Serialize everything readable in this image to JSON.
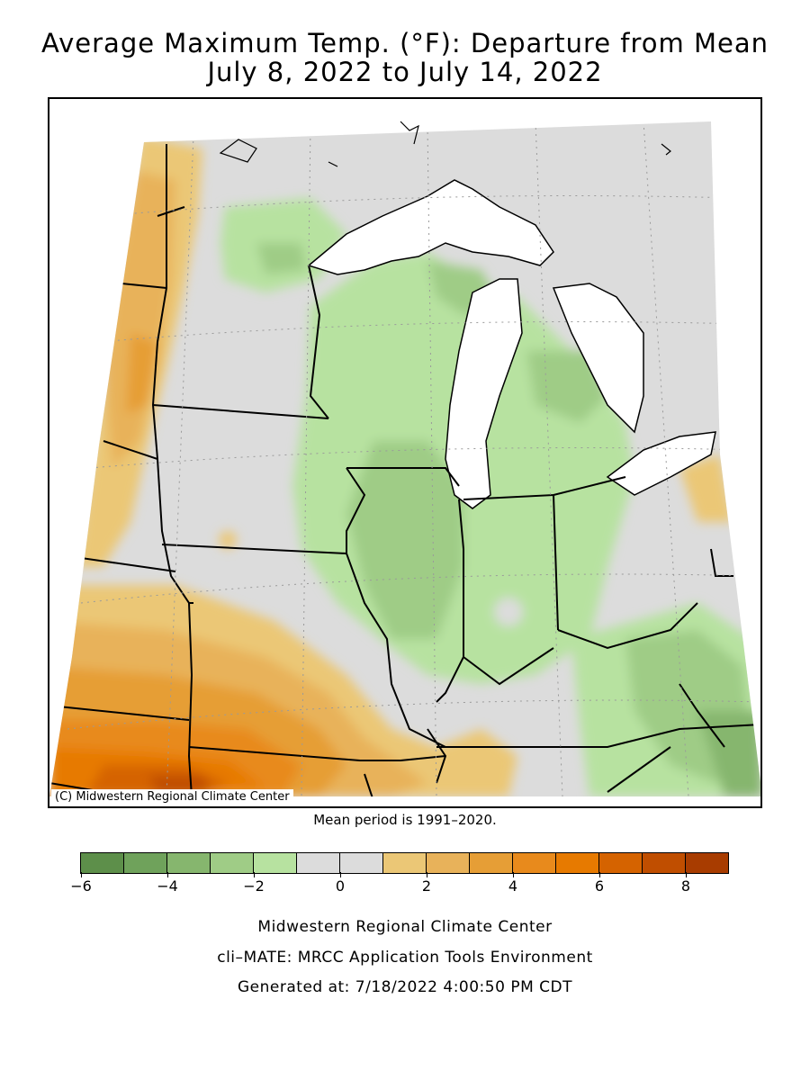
{
  "title": {
    "line1": "Average Maximum Temp. (°F): Departure from Mean",
    "line2": "July 8, 2022 to July 14, 2022"
  },
  "map": {
    "copyright": "(C) Midwestern Regional Climate Center",
    "mean_period": "Mean period is 1991–2020."
  },
  "legend": {
    "colors": [
      "#5d8f4a",
      "#6fa25b",
      "#86b66e",
      "#9fcc86",
      "#b7e2a0",
      "#dcdcdc",
      "#dcdcdc",
      "#ebc776",
      "#e8b25a",
      "#e69e36",
      "#e88a1c",
      "#e77a00",
      "#d56300",
      "#c04e00",
      "#a83c00"
    ],
    "tick_labels": [
      "−6",
      "−4",
      "−2",
      "0",
      "2",
      "4",
      "6",
      "8"
    ]
  },
  "footer": {
    "line1": "Midwestern Regional Climate Center",
    "line2": "cli–MATE: MRCC Application Tools Environment",
    "line3": "Generated at: 7/18/2022 4:00:50 PM CDT"
  }
}
